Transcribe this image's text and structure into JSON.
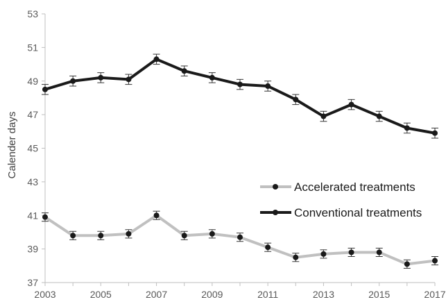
{
  "chart_data": {
    "type": "line",
    "title": "",
    "xlabel": "",
    "ylabel": "Calender days",
    "xlim": [
      2003,
      2017
    ],
    "ylim": [
      37,
      53
    ],
    "x_ticks": [
      "2003",
      "2005",
      "2007",
      "2009",
      "2011",
      "2013",
      "2015",
      "2017"
    ],
    "y_ticks": [
      "37",
      "39",
      "41",
      "43",
      "45",
      "47",
      "49",
      "51",
      "53"
    ],
    "grid": false,
    "legend_position": "right",
    "x": [
      2003,
      2004,
      2005,
      2006,
      2007,
      2008,
      2009,
      2010,
      2011,
      2012,
      2013,
      2014,
      2015,
      2016,
      2017
    ],
    "series": [
      {
        "name": "Accelerated treatments",
        "color": "#c0c0c0",
        "values": [
          40.9,
          39.8,
          39.8,
          39.9,
          41.0,
          39.8,
          39.9,
          39.7,
          39.1,
          38.5,
          38.7,
          38.8,
          38.8,
          38.1,
          38.3
        ],
        "error": [
          0.25,
          0.25,
          0.25,
          0.25,
          0.25,
          0.25,
          0.25,
          0.25,
          0.25,
          0.25,
          0.25,
          0.25,
          0.25,
          0.25,
          0.25
        ]
      },
      {
        "name": "Conventional treatments",
        "color": "#1a1a1a",
        "values": [
          48.5,
          49.0,
          49.2,
          49.1,
          50.3,
          49.6,
          49.2,
          48.8,
          48.7,
          47.9,
          46.9,
          47.6,
          46.9,
          46.2,
          45.9
        ],
        "error": [
          0.3,
          0.3,
          0.3,
          0.3,
          0.3,
          0.3,
          0.3,
          0.3,
          0.3,
          0.3,
          0.3,
          0.3,
          0.3,
          0.3,
          0.3
        ]
      }
    ]
  }
}
